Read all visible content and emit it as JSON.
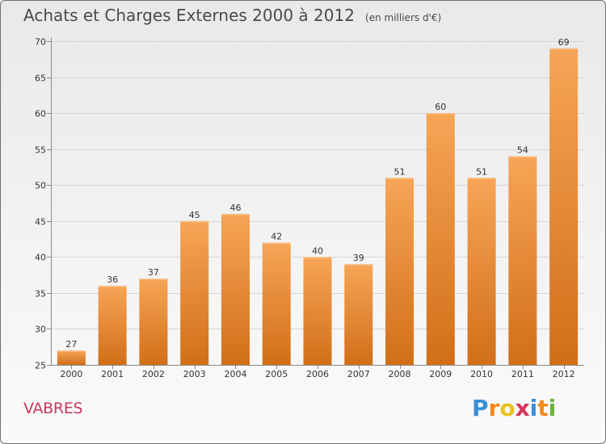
{
  "chart_data": {
    "type": "bar",
    "title": "Achats et Charges Externes 2000 à 2012",
    "subtitle": "(en milliers d'€)",
    "categories": [
      "2000",
      "2001",
      "2002",
      "2003",
      "2004",
      "2005",
      "2006",
      "2007",
      "2008",
      "2009",
      "2010",
      "2011",
      "2012"
    ],
    "values": [
      27,
      36,
      37,
      45,
      46,
      42,
      40,
      39,
      51,
      60,
      51,
      54,
      69
    ],
    "ylim": [
      25,
      70
    ],
    "yticks": [
      25,
      30,
      35,
      40,
      45,
      50,
      55,
      60,
      65,
      70
    ],
    "grid": true,
    "bar_color": "#f0913a"
  },
  "place": "VABRES",
  "brand": {
    "letters": [
      "P",
      "r",
      "o",
      "x",
      "i",
      "t",
      "i"
    ],
    "colors": [
      "#3a8fd6",
      "#f28a1e",
      "#e8c31a",
      "#d6365a",
      "#3a8fd6",
      "#f28a1e",
      "#6bb33a"
    ]
  }
}
